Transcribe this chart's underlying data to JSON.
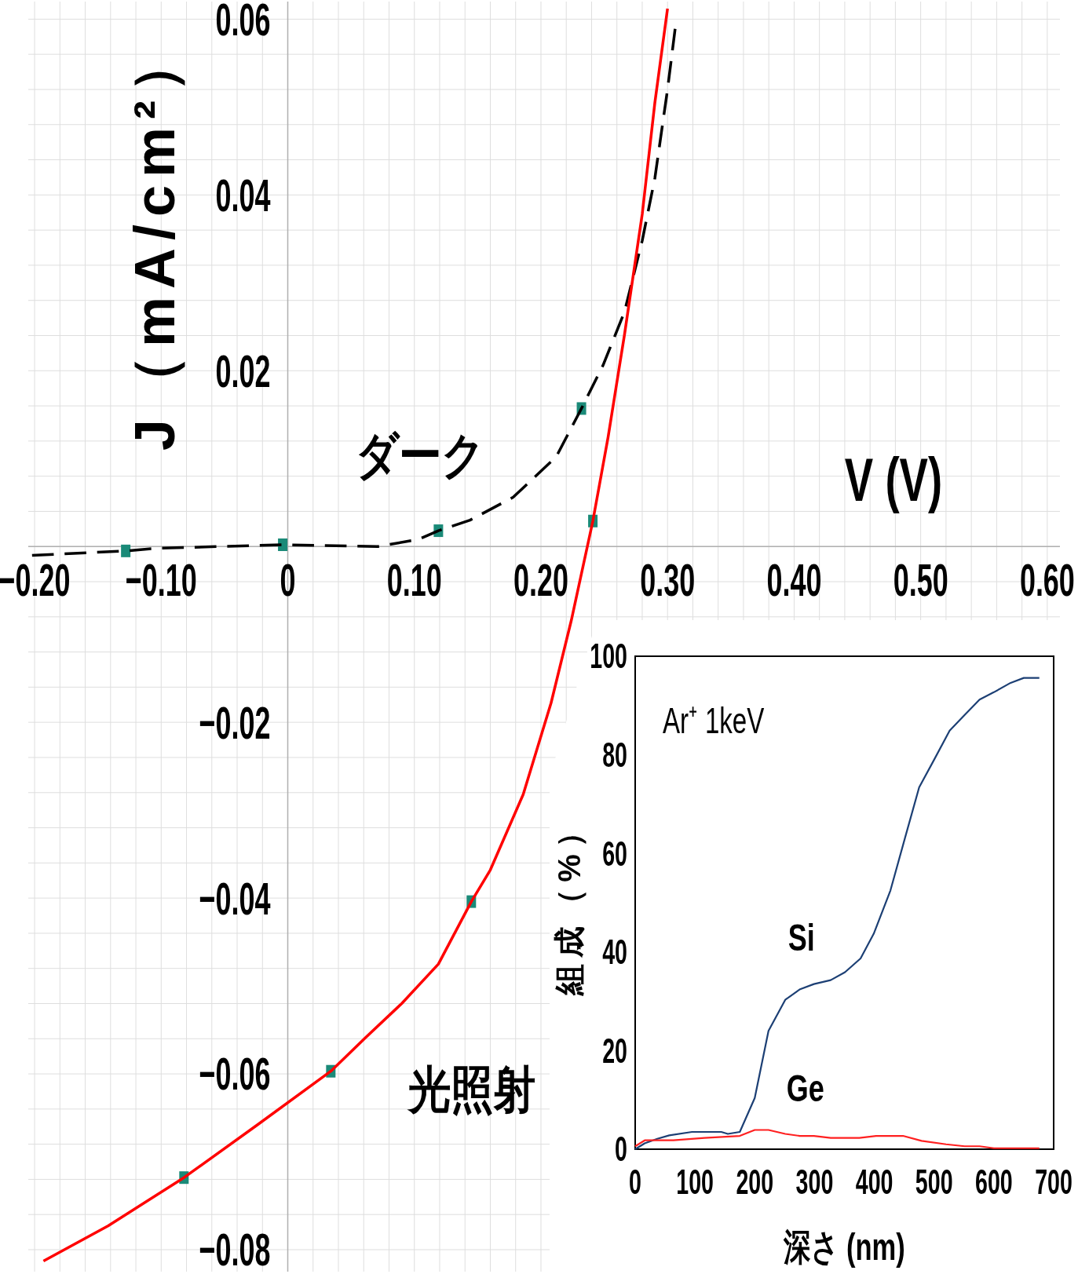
{
  "chart_data": [
    {
      "type": "line",
      "xlabel": "V (V)",
      "ylabel": "J（mA/cm²）",
      "xlim": [
        -0.205,
        0.61
      ],
      "ylim": [
        -0.0825,
        0.062
      ],
      "grid": true,
      "xticks": [
        {
          "value": -0.2,
          "label": "−0.20"
        },
        {
          "value": -0.18,
          "label": null
        },
        {
          "value": -0.16,
          "label": null
        },
        {
          "value": -0.14,
          "label": null
        },
        {
          "value": -0.12,
          "label": null
        },
        {
          "value": -0.1,
          "label": "−0.10"
        },
        {
          "value": -0.08,
          "label": null
        },
        {
          "value": -0.06,
          "label": null
        },
        {
          "value": -0.04,
          "label": null
        },
        {
          "value": -0.02,
          "label": null
        },
        0,
        {
          "value": 0.02,
          "label": null
        },
        {
          "value": 0.04,
          "label": null
        },
        {
          "value": 0.06,
          "label": null
        },
        {
          "value": 0.08,
          "label": null
        },
        {
          "value": 0.1,
          "label": "0.10"
        },
        {
          "value": 0.12,
          "label": null
        },
        {
          "value": 0.14,
          "label": null
        },
        {
          "value": 0.16,
          "label": null
        },
        {
          "value": 0.18,
          "label": null
        },
        {
          "value": 0.2,
          "label": "0.20"
        },
        {
          "value": 0.22,
          "label": null
        },
        {
          "value": 0.24,
          "label": null
        },
        {
          "value": 0.26,
          "label": null
        },
        {
          "value": 0.28,
          "label": null
        },
        {
          "value": 0.3,
          "label": "0.30"
        },
        {
          "value": 0.32,
          "label": null
        },
        {
          "value": 0.34,
          "label": null
        },
        {
          "value": 0.36,
          "label": null
        },
        {
          "value": 0.38,
          "label": null
        },
        {
          "value": 0.4,
          "label": "0.40"
        },
        {
          "value": 0.42,
          "label": null
        },
        {
          "value": 0.44,
          "label": null
        },
        {
          "value": 0.46,
          "label": null
        },
        {
          "value": 0.48,
          "label": null
        },
        {
          "value": 0.5,
          "label": "0.50"
        },
        {
          "value": 0.52,
          "label": null
        },
        {
          "value": 0.54,
          "label": null
        },
        {
          "value": 0.56,
          "label": null
        },
        {
          "value": 0.58,
          "label": null
        },
        {
          "value": 0.6,
          "label": "0.60"
        }
      ],
      "yticks": [
        {
          "value": -0.08,
          "label": "−0.08"
        },
        {
          "value": -0.076,
          "label": null
        },
        {
          "value": -0.072,
          "label": null
        },
        {
          "value": -0.068,
          "label": null
        },
        {
          "value": -0.064,
          "label": null
        },
        {
          "value": -0.06,
          "label": "−0.06"
        },
        {
          "value": -0.056,
          "label": null
        },
        {
          "value": -0.052,
          "label": null
        },
        {
          "value": -0.048,
          "label": null
        },
        {
          "value": -0.044,
          "label": null
        },
        {
          "value": -0.04,
          "label": "−0.04"
        },
        {
          "value": -0.036,
          "label": null
        },
        {
          "value": -0.032,
          "label": null
        },
        {
          "value": -0.028,
          "label": null
        },
        {
          "value": -0.024,
          "label": null
        },
        {
          "value": -0.02,
          "label": "−0.02"
        },
        {
          "value": -0.016,
          "label": null
        },
        {
          "value": -0.012,
          "label": null
        },
        {
          "value": -0.008,
          "label": null
        },
        {
          "value": -0.004,
          "label": null
        },
        {
          "value": 0,
          "label": null
        },
        {
          "value": 0.004,
          "label": null
        },
        {
          "value": 0.008,
          "label": null
        },
        {
          "value": 0.012,
          "label": null
        },
        {
          "value": 0.016,
          "label": null
        },
        0.02,
        {
          "value": 0.024,
          "label": null
        },
        {
          "value": 0.028,
          "label": null
        },
        {
          "value": 0.032,
          "label": null
        },
        {
          "value": 0.036,
          "label": null
        },
        0.04,
        {
          "value": 0.044,
          "label": null
        },
        {
          "value": 0.048,
          "label": null
        },
        {
          "value": 0.052,
          "label": null
        },
        {
          "value": 0.056,
          "label": null
        },
        0.06
      ],
      "series": [
        {
          "name": "ダーク",
          "color": "#000000",
          "line_style": "dashed",
          "x": [
            -0.202,
            -0.128,
            -0.103,
            -0.004,
            0.071,
            0.103,
            0.119,
            0.144,
            0.178,
            0.212,
            0.232,
            0.249,
            0.266,
            0.28,
            0.29,
            0.3,
            0.306
          ],
          "values": [
            -0.001,
            -0.0005,
            -0.0002,
            0.0002,
            0,
            0.0008,
            0.0018,
            0.003,
            0.0056,
            0.0102,
            0.0157,
            0.0206,
            0.0267,
            0.0348,
            0.0419,
            0.052,
            0.0589
          ]
        },
        {
          "name": "光照射",
          "color": "#ff0000",
          "x": [
            -0.193,
            -0.142,
            -0.082,
            -0.024,
            0.034,
            0.062,
            0.09,
            0.119,
            0.145,
            0.16,
            0.186,
            0.208,
            0.224,
            0.241,
            0.253,
            0.266,
            0.28,
            0.29,
            0.3
          ],
          "values": [
            -0.0813,
            -0.0773,
            -0.0718,
            -0.0658,
            -0.0597,
            -0.0558,
            -0.052,
            -0.0475,
            -0.0404,
            -0.0368,
            -0.0282,
            -0.0178,
            -0.0084,
            0.0029,
            0.0124,
            0.0241,
            0.0378,
            0.0505,
            0.0612
          ]
        },
        {
          "type": "scatter",
          "marker": "square",
          "color": "#1a8a78",
          "x": [
            -0.128,
            -0.004,
            0.119,
            0.232,
            0.241,
            0.145,
            0.034,
            -0.082
          ],
          "values": [
            -0.0005,
            0.0002,
            0.0018,
            0.0157,
            0.0029,
            -0.0404,
            -0.0597,
            -0.0718
          ]
        }
      ]
    },
    {
      "type": "line",
      "xlabel": "深さ (nm)",
      "ylabel": "組成（%）",
      "annotations": [
        "Ar⁺ 1keV"
      ],
      "xlim": [
        0,
        700
      ],
      "ylim": [
        0,
        100
      ],
      "xticks": [
        0,
        100,
        200,
        300,
        400,
        500,
        600,
        700
      ],
      "yticks": [
        0,
        20,
        40,
        60,
        80,
        100
      ],
      "series": [
        {
          "name": "Si",
          "color": "#1c3f74",
          "x": [
            0,
            16,
            37,
            57,
            95,
            144,
            155,
            175,
            200,
            223,
            251,
            275,
            299,
            327,
            351,
            377,
            399,
            427,
            451,
            475,
            500,
            526,
            548,
            576,
            600,
            628,
            650,
            676
          ],
          "values": [
            0,
            1.2,
            2.1,
            2.8,
            3.5,
            3.5,
            3.1,
            3.5,
            10.4,
            24,
            30.3,
            32.4,
            33.5,
            34.3,
            35.9,
            38.7,
            43.7,
            52.5,
            63,
            73.4,
            79,
            84.9,
            87.7,
            91.2,
            92.7,
            94.6,
            95.6,
            95.6
          ]
        },
        {
          "name": "Ge",
          "color": "#ff2020",
          "x": [
            0,
            16,
            64,
            116,
            175,
            200,
            223,
            251,
            275,
            299,
            327,
            375,
            403,
            448,
            479,
            520,
            551,
            576,
            600,
            676
          ],
          "values": [
            0.6,
            1.8,
            1.8,
            2.3,
            2.7,
            3.9,
            3.9,
            3.1,
            2.7,
            2.7,
            2.3,
            2.3,
            2.7,
            2.7,
            1.7,
            1,
            0.6,
            0.6,
            0.2,
            0.2
          ]
        }
      ]
    }
  ]
}
